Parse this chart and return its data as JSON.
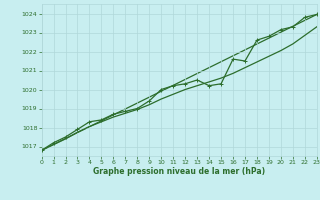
{
  "title": "Graphe pression niveau de la mer (hPa)",
  "bg_color": "#c8eef0",
  "grid_color": "#b0d8da",
  "line_color": "#2d6e2d",
  "x_min": 0,
  "x_max": 23,
  "y_min": 1016.5,
  "y_max": 1024.5,
  "yticks": [
    1017,
    1018,
    1019,
    1020,
    1021,
    1022,
    1023,
    1024
  ],
  "xticks": [
    0,
    1,
    2,
    3,
    4,
    5,
    6,
    7,
    8,
    9,
    10,
    11,
    12,
    13,
    14,
    15,
    16,
    17,
    18,
    19,
    20,
    21,
    22,
    23
  ],
  "data_hours": [
    0,
    1,
    2,
    3,
    4,
    5,
    6,
    7,
    8,
    9,
    10,
    11,
    12,
    13,
    14,
    15,
    16,
    17,
    18,
    19,
    20,
    21,
    22,
    23
  ],
  "data_values": [
    1016.8,
    1017.2,
    1017.5,
    1017.9,
    1018.3,
    1018.4,
    1018.7,
    1018.85,
    1019.0,
    1019.4,
    1020.0,
    1020.2,
    1020.3,
    1020.5,
    1020.2,
    1020.3,
    1021.6,
    1021.5,
    1022.6,
    1022.8,
    1023.15,
    1023.3,
    1023.8,
    1023.95
  ],
  "smooth_values": [
    1016.8,
    1017.1,
    1017.4,
    1017.75,
    1018.05,
    1018.3,
    1018.55,
    1018.75,
    1018.95,
    1019.2,
    1019.5,
    1019.75,
    1020.0,
    1020.2,
    1020.4,
    1020.6,
    1020.85,
    1021.15,
    1021.45,
    1021.75,
    1022.05,
    1022.4,
    1022.85,
    1023.3
  ],
  "line_width": 0.9,
  "marker_size": 2.5
}
